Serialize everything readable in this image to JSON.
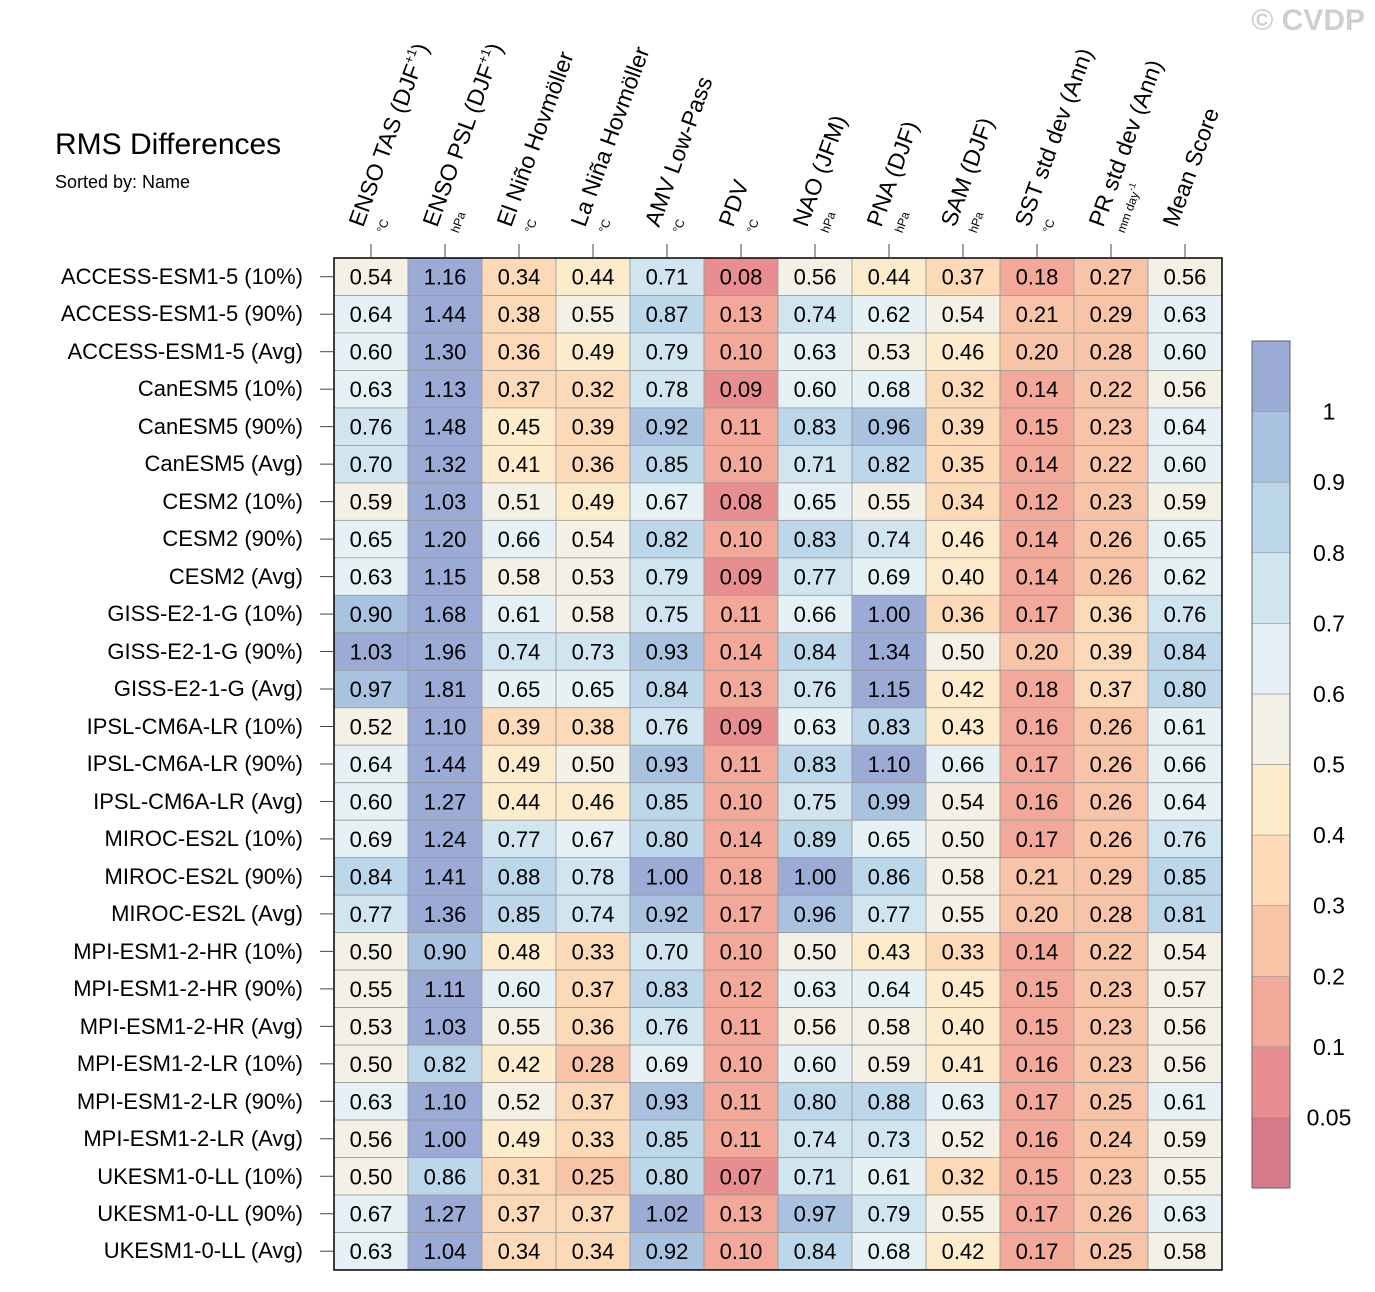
{
  "watermark": "© CVDP",
  "title": "RMS Differences",
  "subtitle": "Sorted by: Name",
  "chart_data": {
    "type": "heatmap",
    "title": "RMS Differences",
    "columns": [
      {
        "name": "ENSO TAS (DJF",
        "sup": "+1",
        "close": ")",
        "unit": "°C"
      },
      {
        "name": "ENSO PSL (DJF",
        "sup": "+1",
        "close": ")",
        "unit": "hPa"
      },
      {
        "name": "El Niño Hovmöller",
        "sup": "",
        "close": "",
        "unit": "°C"
      },
      {
        "name": "La Niña Hovmöller",
        "sup": "",
        "close": "",
        "unit": "°C"
      },
      {
        "name": "AMV Low-Pass",
        "sup": "",
        "close": "",
        "unit": "°C"
      },
      {
        "name": "PDV",
        "sup": "",
        "close": "",
        "unit": "°C"
      },
      {
        "name": "NAO (JFM)",
        "sup": "",
        "close": "",
        "unit": "hPa"
      },
      {
        "name": "PNA (DJF)",
        "sup": "",
        "close": "",
        "unit": "hPa"
      },
      {
        "name": "SAM (DJF)",
        "sup": "",
        "close": "",
        "unit": "hPa"
      },
      {
        "name": "SST std dev (Ann)",
        "sup": "",
        "close": "",
        "unit": "°C"
      },
      {
        "name": "PR std dev (Ann)",
        "sup": "",
        "close": "",
        "unit": "mm day",
        "unit_sup": "-1"
      },
      {
        "name": "Mean Score",
        "sup": "",
        "close": "",
        "unit": ""
      }
    ],
    "rows": [
      "ACCESS-ESM1-5 (10%)",
      "ACCESS-ESM1-5 (90%)",
      "ACCESS-ESM1-5 (Avg)",
      "CanESM5 (10%)",
      "CanESM5 (90%)",
      "CanESM5 (Avg)",
      "CESM2 (10%)",
      "CESM2 (90%)",
      "CESM2 (Avg)",
      "GISS-E2-1-G (10%)",
      "GISS-E2-1-G (90%)",
      "GISS-E2-1-G (Avg)",
      "IPSL-CM6A-LR (10%)",
      "IPSL-CM6A-LR (90%)",
      "IPSL-CM6A-LR (Avg)",
      "MIROC-ES2L (10%)",
      "MIROC-ES2L (90%)",
      "MIROC-ES2L (Avg)",
      "MPI-ESM1-2-HR (10%)",
      "MPI-ESM1-2-HR (90%)",
      "MPI-ESM1-2-HR (Avg)",
      "MPI-ESM1-2-LR (10%)",
      "MPI-ESM1-2-LR (90%)",
      "MPI-ESM1-2-LR (Avg)",
      "UKESM1-0-LL (10%)",
      "UKESM1-0-LL (90%)",
      "UKESM1-0-LL (Avg)"
    ],
    "values": [
      [
        "0.54",
        "1.16",
        "0.34",
        "0.44",
        "0.71",
        "0.08",
        "0.56",
        "0.44",
        "0.37",
        "0.18",
        "0.27",
        "0.56"
      ],
      [
        "0.64",
        "1.44",
        "0.38",
        "0.55",
        "0.87",
        "0.13",
        "0.74",
        "0.62",
        "0.54",
        "0.21",
        "0.29",
        "0.63"
      ],
      [
        "0.60",
        "1.30",
        "0.36",
        "0.49",
        "0.79",
        "0.10",
        "0.63",
        "0.53",
        "0.46",
        "0.20",
        "0.28",
        "0.60"
      ],
      [
        "0.63",
        "1.13",
        "0.37",
        "0.32",
        "0.78",
        "0.09",
        "0.60",
        "0.68",
        "0.32",
        "0.14",
        "0.22",
        "0.56"
      ],
      [
        "0.76",
        "1.48",
        "0.45",
        "0.39",
        "0.92",
        "0.11",
        "0.83",
        "0.96",
        "0.39",
        "0.15",
        "0.23",
        "0.64"
      ],
      [
        "0.70",
        "1.32",
        "0.41",
        "0.36",
        "0.85",
        "0.10",
        "0.71",
        "0.82",
        "0.35",
        "0.14",
        "0.22",
        "0.60"
      ],
      [
        "0.59",
        "1.03",
        "0.51",
        "0.49",
        "0.67",
        "0.08",
        "0.65",
        "0.55",
        "0.34",
        "0.12",
        "0.23",
        "0.59"
      ],
      [
        "0.65",
        "1.20",
        "0.66",
        "0.54",
        "0.82",
        "0.10",
        "0.83",
        "0.74",
        "0.46",
        "0.14",
        "0.26",
        "0.65"
      ],
      [
        "0.63",
        "1.15",
        "0.58",
        "0.53",
        "0.79",
        "0.09",
        "0.77",
        "0.69",
        "0.40",
        "0.14",
        "0.26",
        "0.62"
      ],
      [
        "0.90",
        "1.68",
        "0.61",
        "0.58",
        "0.75",
        "0.11",
        "0.66",
        "1.00",
        "0.36",
        "0.17",
        "0.36",
        "0.76"
      ],
      [
        "1.03",
        "1.96",
        "0.74",
        "0.73",
        "0.93",
        "0.14",
        "0.84",
        "1.34",
        "0.50",
        "0.20",
        "0.39",
        "0.84"
      ],
      [
        "0.97",
        "1.81",
        "0.65",
        "0.65",
        "0.84",
        "0.13",
        "0.76",
        "1.15",
        "0.42",
        "0.18",
        "0.37",
        "0.80"
      ],
      [
        "0.52",
        "1.10",
        "0.39",
        "0.38",
        "0.76",
        "0.09",
        "0.63",
        "0.83",
        "0.43",
        "0.16",
        "0.26",
        "0.61"
      ],
      [
        "0.64",
        "1.44",
        "0.49",
        "0.50",
        "0.93",
        "0.11",
        "0.83",
        "1.10",
        "0.66",
        "0.17",
        "0.26",
        "0.66"
      ],
      [
        "0.60",
        "1.27",
        "0.44",
        "0.46",
        "0.85",
        "0.10",
        "0.75",
        "0.99",
        "0.54",
        "0.16",
        "0.26",
        "0.64"
      ],
      [
        "0.69",
        "1.24",
        "0.77",
        "0.67",
        "0.80",
        "0.14",
        "0.89",
        "0.65",
        "0.50",
        "0.17",
        "0.26",
        "0.76"
      ],
      [
        "0.84",
        "1.41",
        "0.88",
        "0.78",
        "1.00",
        "0.18",
        "1.00",
        "0.86",
        "0.58",
        "0.21",
        "0.29",
        "0.85"
      ],
      [
        "0.77",
        "1.36",
        "0.85",
        "0.74",
        "0.92",
        "0.17",
        "0.96",
        "0.77",
        "0.55",
        "0.20",
        "0.28",
        "0.81"
      ],
      [
        "0.50",
        "0.90",
        "0.48",
        "0.33",
        "0.70",
        "0.10",
        "0.50",
        "0.43",
        "0.33",
        "0.14",
        "0.22",
        "0.54"
      ],
      [
        "0.55",
        "1.11",
        "0.60",
        "0.37",
        "0.83",
        "0.12",
        "0.63",
        "0.64",
        "0.45",
        "0.15",
        "0.23",
        "0.57"
      ],
      [
        "0.53",
        "1.03",
        "0.55",
        "0.36",
        "0.76",
        "0.11",
        "0.56",
        "0.58",
        "0.40",
        "0.15",
        "0.23",
        "0.56"
      ],
      [
        "0.50",
        "0.82",
        "0.42",
        "0.28",
        "0.69",
        "0.10",
        "0.60",
        "0.59",
        "0.41",
        "0.16",
        "0.23",
        "0.56"
      ],
      [
        "0.63",
        "1.10",
        "0.52",
        "0.37",
        "0.93",
        "0.11",
        "0.80",
        "0.88",
        "0.63",
        "0.17",
        "0.25",
        "0.61"
      ],
      [
        "0.56",
        "1.00",
        "0.49",
        "0.33",
        "0.85",
        "0.11",
        "0.74",
        "0.73",
        "0.52",
        "0.16",
        "0.24",
        "0.59"
      ],
      [
        "0.50",
        "0.86",
        "0.31",
        "0.25",
        "0.80",
        "0.07",
        "0.71",
        "0.61",
        "0.32",
        "0.15",
        "0.23",
        "0.55"
      ],
      [
        "0.67",
        "1.27",
        "0.37",
        "0.37",
        "1.02",
        "0.13",
        "0.97",
        "0.79",
        "0.55",
        "0.17",
        "0.26",
        "0.63"
      ],
      [
        "0.63",
        "1.04",
        "0.34",
        "0.34",
        "0.92",
        "0.10",
        "0.84",
        "0.68",
        "0.42",
        "0.17",
        "0.25",
        "0.58"
      ]
    ],
    "colorbar": {
      "levels": [
        "0.05",
        "0.1",
        "0.2",
        "0.3",
        "0.4",
        "0.5",
        "0.6",
        "0.7",
        "0.8",
        "0.9",
        "1"
      ],
      "level_values": [
        0.05,
        0.1,
        0.2,
        0.3,
        0.4,
        0.5,
        0.6,
        0.7,
        0.8,
        0.9,
        1.0
      ],
      "colors": [
        "#d47a8b",
        "#e88e90",
        "#f2a99a",
        "#f8c4a7",
        "#fcdab8",
        "#fdeccc",
        "#f3f0e6",
        "#e6f1f6",
        "#d1e5f0",
        "#bcd6ea",
        "#a8c2e0",
        "#9cabd6"
      ]
    }
  }
}
